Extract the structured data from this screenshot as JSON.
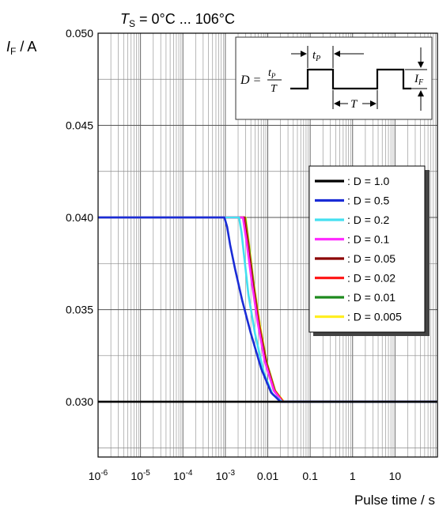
{
  "chart_data": {
    "type": "line",
    "title_prefix": "T",
    "title_sub": "S",
    "title_rest": " = 0°C ... 106°C",
    "ylabel_main": "I",
    "ylabel_sub": "F",
    "ylabel_unit": " / A",
    "xlabel": "Pulse time / s",
    "x_scale": "log",
    "xlim": [
      1e-06,
      100
    ],
    "ylim": [
      0.027,
      0.05
    ],
    "y_ticks": [
      0.03,
      0.035,
      0.04,
      0.045,
      0.05
    ],
    "y_tick_labels": [
      "0.030",
      "0.035",
      "0.040",
      "0.045",
      "0.050"
    ],
    "x_tick_labels": [
      {
        "base": "10",
        "exp": "-6",
        "v": 1e-06
      },
      {
        "base": "10",
        "exp": "-5",
        "v": 1e-05
      },
      {
        "base": "10",
        "exp": "-4",
        "v": 0.0001
      },
      {
        "base": "10",
        "exp": "-3",
        "v": 0.001
      },
      {
        "base": "0.01",
        "exp": "",
        "v": 0.01
      },
      {
        "base": "0.1",
        "exp": "",
        "v": 0.1
      },
      {
        "base": "1",
        "exp": "",
        "v": 1
      },
      {
        "base": "10",
        "exp": "",
        "v": 10
      }
    ],
    "grid": true,
    "legend_position": "right",
    "series": [
      {
        "name": ": D = 1.0",
        "color": "#000000",
        "points": [
          [
            1e-06,
            0.03
          ],
          [
            100,
            0.03
          ]
        ]
      },
      {
        "name": ": D = 0.5",
        "color": "#1a2cd6",
        "points": [
          [
            1e-06,
            0.04
          ],
          [
            0.00095,
            0.04
          ],
          [
            0.0011,
            0.0395
          ],
          [
            0.0013,
            0.0385
          ],
          [
            0.0017,
            0.0372
          ],
          [
            0.0025,
            0.0355
          ],
          [
            0.004,
            0.0337
          ],
          [
            0.007,
            0.0318
          ],
          [
            0.012,
            0.0305
          ],
          [
            0.02,
            0.03
          ],
          [
            100,
            0.03
          ]
        ]
      },
      {
        "name": ": D = 0.2",
        "color": "#44e0f0",
        "points": [
          [
            1e-06,
            0.04
          ],
          [
            0.0021,
            0.04
          ],
          [
            0.0024,
            0.0392
          ],
          [
            0.0028,
            0.0378
          ],
          [
            0.0035,
            0.0358
          ],
          [
            0.005,
            0.0337
          ],
          [
            0.008,
            0.0316
          ],
          [
            0.013,
            0.0304
          ],
          [
            0.022,
            0.03
          ],
          [
            100,
            0.03
          ]
        ]
      },
      {
        "name": ": D = 0.1",
        "color": "#ff2cff",
        "points": [
          [
            1e-06,
            0.04
          ],
          [
            0.0026,
            0.04
          ],
          [
            0.0032,
            0.0386
          ],
          [
            0.0042,
            0.0365
          ],
          [
            0.0058,
            0.0343
          ],
          [
            0.0085,
            0.0322
          ],
          [
            0.014,
            0.0306
          ],
          [
            0.022,
            0.03
          ],
          [
            100,
            0.03
          ]
        ]
      },
      {
        "name": ": D = 0.05",
        "color": "#8b0000",
        "points": [
          [
            1e-06,
            0.04
          ],
          [
            0.0027,
            0.04
          ],
          [
            0.0033,
            0.0386
          ],
          [
            0.0044,
            0.0364
          ],
          [
            0.006,
            0.0342
          ],
          [
            0.009,
            0.0321
          ],
          [
            0.014,
            0.0306
          ],
          [
            0.022,
            0.03
          ],
          [
            100,
            0.03
          ]
        ]
      },
      {
        "name": ": D = 0.02",
        "color": "#ff1a1a",
        "points": [
          [
            1e-06,
            0.04
          ],
          [
            0.0028,
            0.04
          ],
          [
            0.0034,
            0.0386
          ],
          [
            0.0045,
            0.0364
          ],
          [
            0.0062,
            0.0342
          ],
          [
            0.0092,
            0.0321
          ],
          [
            0.0145,
            0.0306
          ],
          [
            0.023,
            0.03
          ],
          [
            100,
            0.03
          ]
        ]
      },
      {
        "name": ": D = 0.01",
        "color": "#1e8a1e",
        "points": [
          [
            1e-06,
            0.04
          ],
          [
            0.0029,
            0.04
          ],
          [
            0.0035,
            0.0386
          ],
          [
            0.0046,
            0.0364
          ],
          [
            0.0063,
            0.0342
          ],
          [
            0.0094,
            0.0321
          ],
          [
            0.0148,
            0.0306
          ],
          [
            0.023,
            0.03
          ],
          [
            100,
            0.03
          ]
        ]
      },
      {
        "name": ": D = 0.005",
        "color": "#ffee22",
        "points": [
          [
            1e-06,
            0.04
          ],
          [
            0.003,
            0.04
          ],
          [
            0.0036,
            0.0386
          ],
          [
            0.0047,
            0.0364
          ],
          [
            0.0065,
            0.0342
          ],
          [
            0.0096,
            0.0321
          ],
          [
            0.015,
            0.0306
          ],
          [
            0.024,
            0.03
          ],
          [
            100,
            0.03
          ]
        ]
      }
    ],
    "inset": {
      "d_label": "D =",
      "tp_label": "t",
      "tp_sub": "P",
      "t_label": "T",
      "if_label": "I",
      "if_sub": "F"
    }
  }
}
